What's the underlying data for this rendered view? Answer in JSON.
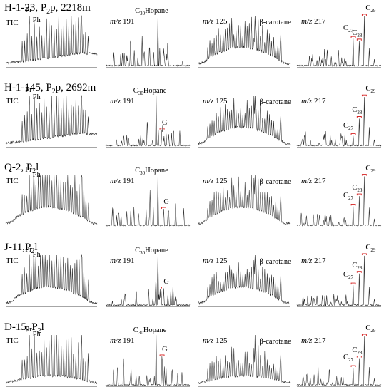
{
  "chart_data": {
    "type": "line",
    "title": "",
    "panel_titles": {
      "tic": "TIC",
      "m191": {
        "italic": "m/z",
        "rest": " 191"
      },
      "m125": {
        "italic": "m/z",
        "rest": " 125"
      },
      "m217": {
        "italic": "m/z",
        "rest": " 217"
      }
    },
    "samples": [
      {
        "name": "H-1-23",
        "title_parts": {
          "a": "H-1-23, P",
          "sub": "2",
          "b": "p, 2218m"
        },
        "line_color": "#222222",
        "panels": {
          "tic": {
            "labels": [
              {
                "text": "Pr"
              },
              {
                "text": "Ph"
              }
            ],
            "baseline_shape": "rising-hump",
            "peak_count": 28
          },
          "m191": {
            "labels": [
              {
                "text": "C",
                "sub": "30",
                "tail": "Hopane"
              }
            ],
            "dominant_peak_at": 0.62
          },
          "m125": {
            "labels": [
              {
                "text": "β-carotane"
              }
            ],
            "baseline_shape": "broad-hump"
          },
          "m217": {
            "labels": [
              {
                "text": "C",
                "sub": "27"
              },
              {
                "text": "C",
                "sub": "28"
              },
              {
                "text": "C",
                "sub": "29"
              }
            ],
            "relative_abundance": [
              0.55,
              0.5,
              1.0
            ]
          }
        }
      },
      {
        "name": "H-1-145",
        "title_parts": {
          "a": "H-1-145,  P",
          "sub": "2",
          "b": "p, 2692m"
        },
        "line_color": "#222222",
        "panels": {
          "tic": {
            "labels": [
              {
                "text": "Pr"
              },
              {
                "text": "Ph"
              }
            ],
            "baseline_shape": "rising-hump",
            "peak_count": 28
          },
          "m191": {
            "labels": [
              {
                "text": "C",
                "sub": "30",
                "tail": "Hopane"
              },
              {
                "text": "G"
              }
            ],
            "dominant_peak_at": 0.6
          },
          "m125": {
            "labels": [
              {
                "text": "β-carotane"
              }
            ],
            "baseline_shape": "broad-hump"
          },
          "m217": {
            "labels": [
              {
                "text": "C",
                "sub": "27"
              },
              {
                "text": "C",
                "sub": "28"
              },
              {
                "text": "C",
                "sub": "29"
              }
            ],
            "relative_abundance": [
              0.2,
              0.55,
              1.0
            ]
          }
        }
      },
      {
        "name": "Q-2",
        "title_parts": {
          "a": "Q-2, P",
          "sub": "2",
          "b": "l"
        },
        "line_color": "#333333",
        "panels": {
          "tic": {
            "labels": [
              {
                "text": "Pr"
              },
              {
                "text": "Ph"
              }
            ],
            "baseline_shape": "broad-hump",
            "peak_count": 30
          },
          "m191": {
            "labels": [
              {
                "text": "C",
                "sub": "30",
                "tail": "Hopane"
              },
              {
                "text": "G"
              }
            ],
            "dominant_peak_at": 0.62
          },
          "m125": {
            "labels": [
              {
                "text": "β-carotane"
              }
            ],
            "baseline_shape": "broad-hump"
          },
          "m217": {
            "labels": [
              {
                "text": "C",
                "sub": "27"
              },
              {
                "text": "C",
                "sub": "28"
              },
              {
                "text": "C",
                "sub": "29"
              }
            ],
            "relative_abundance": [
              0.4,
              0.6,
              1.0
            ]
          }
        }
      },
      {
        "name": "J-11",
        "title_parts": {
          "a": "J-11,P",
          "sub": "2",
          "b": "l"
        },
        "line_color": "#222222",
        "panels": {
          "tic": {
            "labels": [
              {
                "text": "Pr"
              },
              {
                "text": "Ph"
              }
            ],
            "baseline_shape": "broad-hump",
            "peak_count": 30
          },
          "m191": {
            "labels": [
              {
                "text": "C",
                "sub": "30",
                "tail": "Hopane"
              },
              {
                "text": "G"
              }
            ],
            "dominant_peak_at": 0.62
          },
          "m125": {
            "labels": [
              {
                "text": "β-carotane"
              }
            ],
            "baseline_shape": "broad-hump"
          },
          "m217": {
            "labels": [
              {
                "text": "C",
                "sub": "27"
              },
              {
                "text": "C",
                "sub": "28"
              },
              {
                "text": "C",
                "sub": "29"
              }
            ],
            "relative_abundance": [
              0.4,
              0.65,
              1.0
            ]
          }
        }
      },
      {
        "name": "D-15",
        "title_parts": {
          "a": "D-15, P",
          "sub": "2",
          "b": "l"
        },
        "line_color": "#333333",
        "panels": {
          "tic": {
            "labels": [
              {
                "text": "Pr"
              },
              {
                "text": "Ph"
              }
            ],
            "baseline_shape": "low-hump",
            "peak_count": 28
          },
          "m191": {
            "labels": [
              {
                "text": "C",
                "sub": "30",
                "tail": "Hopane"
              },
              {
                "text": "G"
              }
            ],
            "dominant_peak_at": 0.6
          },
          "m125": {
            "labels": [
              {
                "text": "β-carotane"
              }
            ],
            "baseline_shape": "low-hump"
          },
          "m217": {
            "labels": [
              {
                "text": "C",
                "sub": "27"
              },
              {
                "text": "C",
                "sub": "28"
              },
              {
                "text": "C",
                "sub": "29"
              }
            ],
            "relative_abundance": [
              0.35,
              0.55,
              1.0
            ]
          }
        }
      }
    ],
    "marker_color": "#d62020"
  }
}
